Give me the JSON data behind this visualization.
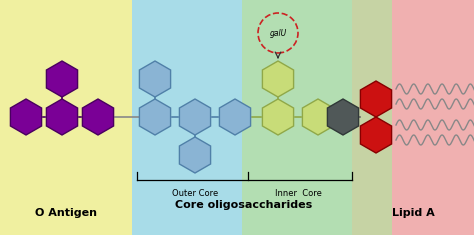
{
  "bg_colors": {
    "o_antigen": "#f0f0a0",
    "core": "#a8dce8",
    "inner_core_overlay": "#b8e0a0",
    "lipid_a": "#f0b0b0"
  },
  "purple": "#7a0096",
  "purple_edge": "#4a0060",
  "blue_hex": "#8ab4d4",
  "blue_edge": "#5080a8",
  "green_hex": "#c8dc78",
  "green_edge": "#90a848",
  "dark_gray": "#505858",
  "dark_edge": "#303838",
  "red_hex": "#cc1111",
  "red_edge": "#880000",
  "dashed_circle_color": "#cc2222",
  "line_color": "#888888",
  "wavy_color": "#888888",
  "label_o_antigen": "O Antigen",
  "label_outer_core": "Outer Core",
  "label_inner_core": "Inner  Core",
  "label_lipid_a": "Lipid A",
  "label_core_oligo": "Core oligosaccharides",
  "label_galu": "galU"
}
